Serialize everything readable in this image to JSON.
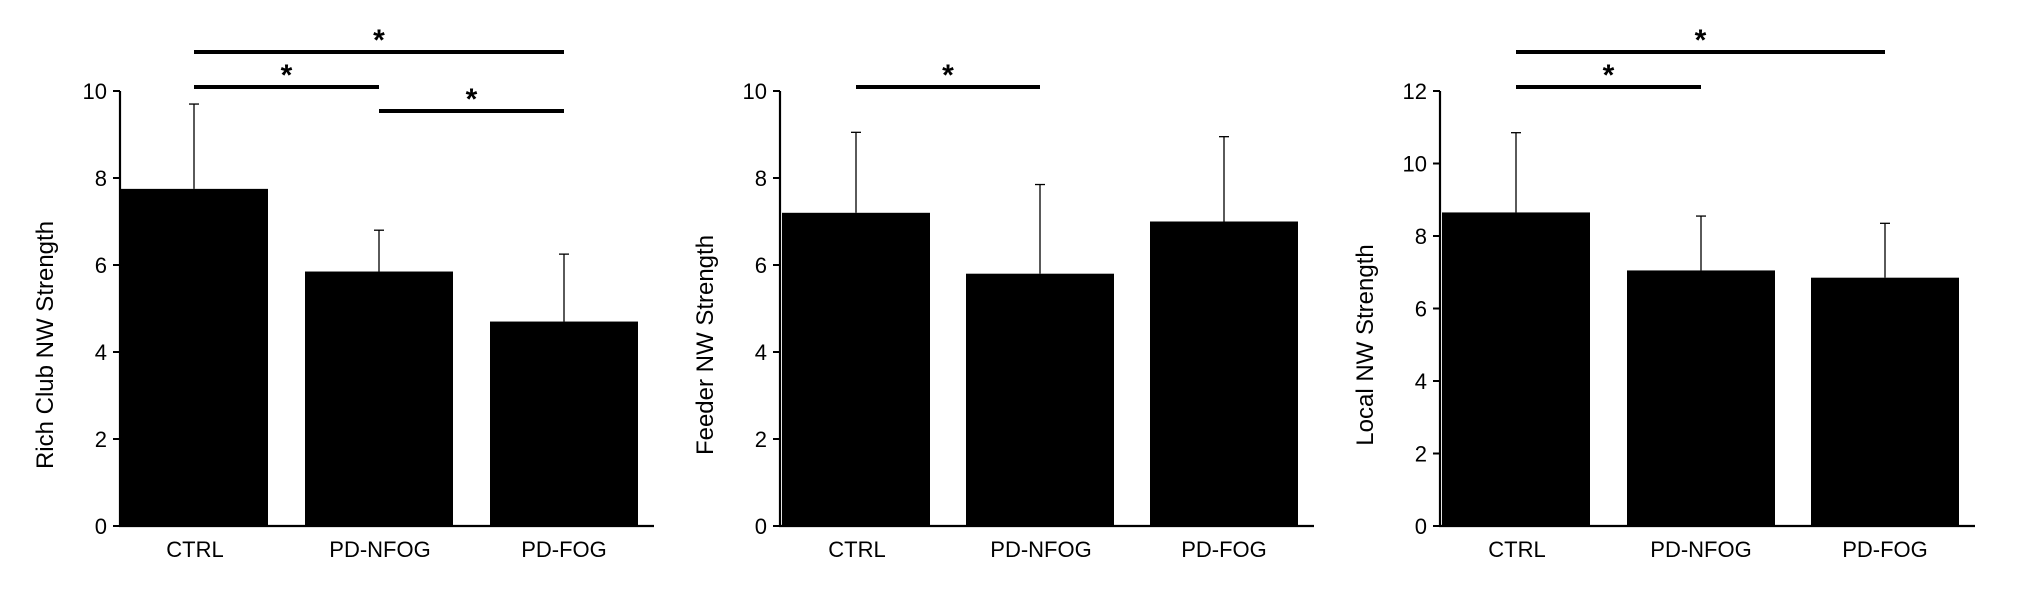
{
  "colors": {
    "bar": "#000000",
    "axis": "#000000",
    "background": "#ffffff"
  },
  "chart_data": [
    {
      "type": "bar",
      "ylabel": "Rich Club NW Strength",
      "xlabel": "",
      "categories": [
        "CTRL",
        "PD-NFOG",
        "PD-FOG"
      ],
      "values": [
        7.75,
        5.85,
        4.7
      ],
      "error_upper": [
        1.95,
        0.95,
        1.55
      ],
      "ylim": [
        0,
        10
      ],
      "yticks": [
        0,
        2,
        4,
        6,
        8,
        10
      ],
      "ytick_labels": [
        "0",
        "2",
        "4",
        "6",
        "8",
        "10"
      ],
      "significance": [
        {
          "from": 0,
          "to": 1,
          "level": 1,
          "label": "*"
        },
        {
          "from": 1,
          "to": 2,
          "level": 0,
          "label": "*"
        },
        {
          "from": 0,
          "to": 2,
          "level": 2,
          "label": "*"
        }
      ]
    },
    {
      "type": "bar",
      "ylabel": "Feeder NW Strength",
      "xlabel": "",
      "categories": [
        "CTRL",
        "PD-NFOG",
        "PD-FOG"
      ],
      "values": [
        7.2,
        5.8,
        7.0
      ],
      "error_upper": [
        1.85,
        2.05,
        1.95
      ],
      "ylim": [
        0,
        10
      ],
      "yticks": [
        0,
        2,
        4,
        6,
        8,
        10
      ],
      "ytick_labels": [
        "0",
        "2",
        "4",
        "6",
        "8",
        "10"
      ],
      "significance": [
        {
          "from": 0,
          "to": 1,
          "level": 1,
          "label": "*"
        }
      ]
    },
    {
      "type": "bar",
      "ylabel": "Local NW Strength",
      "xlabel": "",
      "categories": [
        "CTRL",
        "PD-NFOG",
        "PD-FOG"
      ],
      "values": [
        8.65,
        7.05,
        6.85
      ],
      "error_upper": [
        2.2,
        1.5,
        1.5
      ],
      "ylim": [
        0,
        12
      ],
      "yticks": [
        0,
        2,
        4,
        6,
        8,
        10,
        12
      ],
      "ytick_labels": [
        "0",
        "2",
        "4",
        "6",
        "8",
        "10",
        "12"
      ],
      "significance": [
        {
          "from": 0,
          "to": 1,
          "level": 1,
          "label": "*"
        },
        {
          "from": 0,
          "to": 2,
          "level": 2,
          "label": "*"
        }
      ]
    }
  ]
}
